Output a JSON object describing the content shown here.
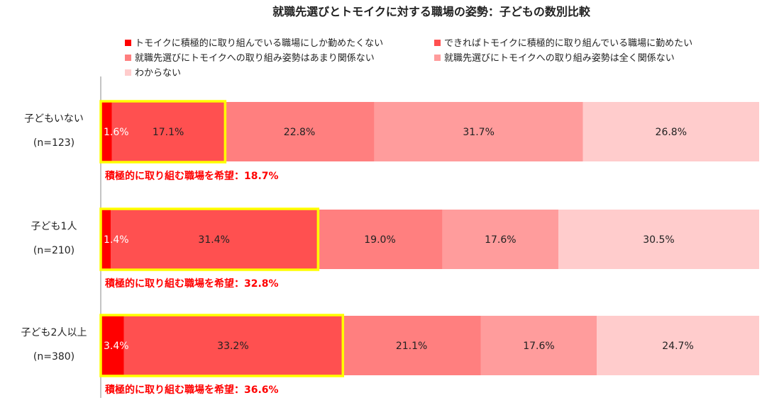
{
  "chart_data": {
    "type": "bar",
    "orientation": "horizontal",
    "stacked": true,
    "percent": true,
    "title": "就職先選びとトモイクに対する職場の姿勢：子どもの数別比較",
    "legend_position": "top",
    "categories": [
      "子どもいない",
      "子ども1人",
      "子ども2人以上"
    ],
    "category_n": [
      "(n=123)",
      "(n=210)",
      "(n=380)"
    ],
    "series": [
      {
        "name": "トモイクに積極的に取り組んでいる職場にしか勤めたくない",
        "values": [
          1.6,
          1.4,
          3.4
        ],
        "color": "#ff0000",
        "label_color": "#ffffff"
      },
      {
        "name": "できればトモイクに積極的に取り組んでいる職場に勤めたい",
        "values": [
          17.1,
          31.4,
          33.2
        ],
        "color": "#ff5050",
        "label_color": "#222222"
      },
      {
        "name": "就職先選びにトモイクへの取り組み姿勢はあまり関係ない",
        "values": [
          22.8,
          19.0,
          21.1
        ],
        "color": "#ff7f7f",
        "label_color": "#222222"
      },
      {
        "name": "就職先選びにトモイクへの取り組み姿勢は全く関係ない",
        "values": [
          31.7,
          17.6,
          17.6
        ],
        "color": "#ff9c9c",
        "label_color": "#222222"
      },
      {
        "name": "わからない",
        "values": [
          26.8,
          30.5,
          24.7
        ],
        "color": "#ffcccc",
        "label_color": "#222222"
      }
    ],
    "value_labels": [
      [
        "1.6%",
        "17.1%",
        "22.8%",
        "31.7%",
        "26.8%"
      ],
      [
        "1.4%",
        "31.4%",
        "19.0%",
        "17.6%",
        "30.5%"
      ],
      [
        "3.4%",
        "33.2%",
        "21.1%",
        "17.6%",
        "24.7%"
      ]
    ],
    "annotations": [
      "積極的に取り組む職場を希望：18.7%",
      "積極的に取り組む職場を希望：32.8%",
      "積極的に取り組む職場を希望：36.6%"
    ],
    "highlight": {
      "series": [
        0,
        1
      ],
      "color": "#ffff00"
    },
    "annotation_color": "#ff0000",
    "xlim": [
      0,
      100
    ],
    "grid": false
  }
}
